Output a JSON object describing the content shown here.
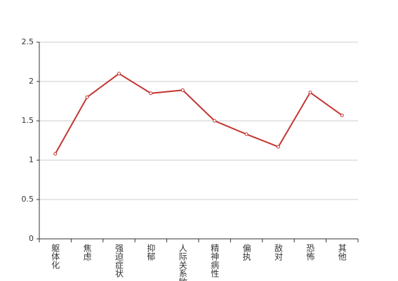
{
  "chart_data": {
    "type": "line",
    "categories": [
      "躯体化",
      "焦虑",
      "强迫症状",
      "抑郁",
      "人际关系敏感",
      "精神病性",
      "偏执",
      "敌对",
      "恐怖",
      "其他"
    ],
    "series": [
      {
        "color": "#c23531",
        "values": [
          1.08,
          1.8,
          2.1,
          1.85,
          1.89,
          1.5,
          1.33,
          1.17,
          1.86,
          1.57
        ]
      }
    ],
    "ylim": [
      0,
      2.5
    ],
    "yticks": [
      0,
      0.5,
      1,
      1.5,
      2,
      2.5
    ],
    "grid": true
  }
}
